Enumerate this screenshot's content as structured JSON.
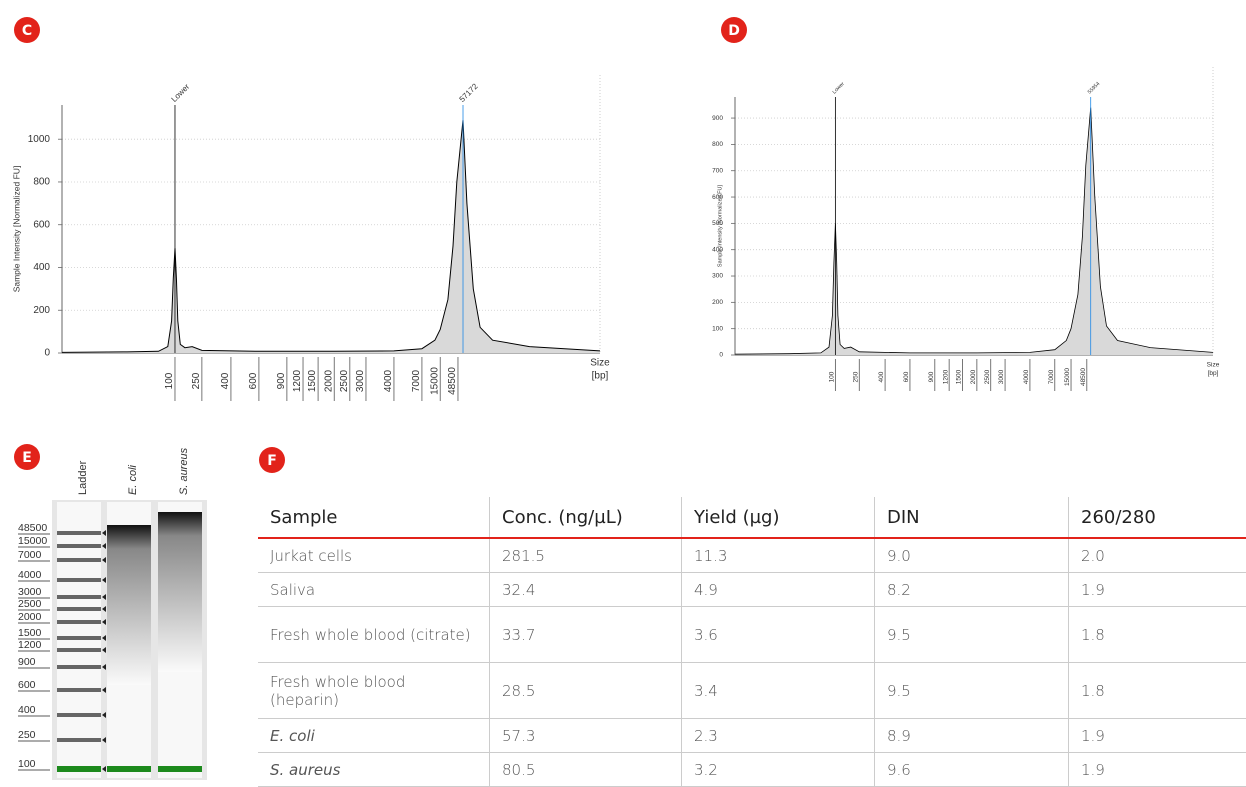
{
  "panel_labels": [
    "C",
    "D",
    "E",
    "F"
  ],
  "chart_data": [
    {
      "type": "line",
      "y_label": "Sample Intensity [Normalized FU]",
      "x_label": "Size",
      "x_unit": "[bp]",
      "x": [
        3,
        20,
        60,
        80,
        90,
        95,
        100,
        105,
        110,
        120,
        140,
        180,
        250,
        600,
        2000,
        4000,
        7000,
        12000,
        15000,
        25000,
        35000,
        45000,
        57172,
        65000,
        80000,
        100000,
        150000,
        500000,
        5000000
      ],
      "values": [
        3,
        5,
        8,
        30,
        150,
        350,
        490,
        350,
        150,
        40,
        25,
        30,
        12,
        8,
        8,
        10,
        20,
        60,
        110,
        250,
        500,
        800,
        1090,
        700,
        300,
        120,
        60,
        30,
        10
      ],
      "xlim": [
        3,
        5000000
      ],
      "xticks": [
        100,
        250,
        400,
        600,
        900,
        1200,
        1500,
        2000,
        2500,
        3000,
        4000,
        7000,
        15000,
        48500
      ],
      "ylim": [
        0,
        1160
      ],
      "yticks": [
        0,
        200,
        400,
        600,
        800,
        1000
      ],
      "grid": true,
      "color": "#000000",
      "fill": "#d9d9d9",
      "annotations": [
        {
          "text": "Lower",
          "x": 100,
          "color": "#000000"
        },
        {
          "text": "57172",
          "x": 57172,
          "color": "#1e88e5"
        }
      ]
    },
    {
      "type": "line",
      "y_label": "Sample Intensity [Normalized FU]",
      "x_label": "Size",
      "x_unit": "[bp]",
      "x": [
        3,
        20,
        60,
        80,
        90,
        95,
        100,
        105,
        110,
        120,
        140,
        180,
        250,
        600,
        2000,
        4000,
        7000,
        12000,
        15000,
        25000,
        35000,
        45000,
        55954,
        65000,
        80000,
        100000,
        150000,
        500000,
        5000000
      ],
      "values": [
        3,
        5,
        8,
        30,
        150,
        350,
        500,
        350,
        150,
        40,
        25,
        30,
        12,
        8,
        8,
        10,
        20,
        55,
        100,
        230,
        450,
        720,
        940,
        600,
        260,
        110,
        55,
        28,
        10
      ],
      "xlim": [
        3,
        5000000
      ],
      "xticks": [
        100,
        250,
        400,
        600,
        900,
        1200,
        1500,
        2000,
        2500,
        3000,
        4000,
        7000,
        15000,
        48500
      ],
      "ylim": [
        0,
        980
      ],
      "yticks": [
        0,
        100,
        200,
        300,
        400,
        500,
        600,
        700,
        800,
        900
      ],
      "grid": true,
      "color": "#000000",
      "fill": "#d9d9d9",
      "annotations": [
        {
          "text": "Lower",
          "x": 100,
          "color": "#000000"
        },
        {
          "text": "55954",
          "x": 55954,
          "color": "#1e88e5"
        }
      ]
    }
  ],
  "gel": {
    "lanes": [
      "Ladder",
      "E. coli",
      "S. aureus"
    ],
    "sizes": [
      48500,
      15000,
      7000,
      4000,
      3000,
      2500,
      2000,
      1500,
      1200,
      900,
      600,
      400,
      250,
      100
    ]
  },
  "table": {
    "header": [
      "Sample",
      "Conc. (ng/µL)",
      "Yield (µg)",
      "DIN",
      "260/280"
    ],
    "rows": [
      [
        "Jurkat cells",
        "281.5",
        "11.3",
        "9.0",
        "2.0"
      ],
      [
        "Saliva",
        "32.4",
        "4.9",
        "8.2",
        "1.9"
      ],
      [
        "Fresh whole blood (citrate)",
        "33.7",
        "3.6",
        "9.5",
        "1.8"
      ],
      [
        "Fresh whole blood (heparin)",
        "28.5",
        "3.4",
        "9.5",
        "1.8"
      ],
      [
        "E. coli",
        "57.3",
        "2.3",
        "8.9",
        "1.9"
      ],
      [
        "S. aureus",
        "80.5",
        "3.2",
        "9.6",
        "1.9"
      ]
    ]
  }
}
